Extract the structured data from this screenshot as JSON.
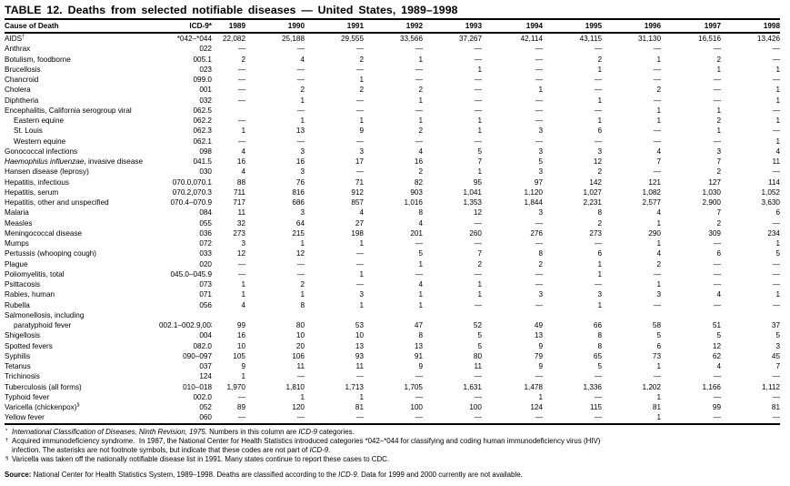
{
  "title": "TABLE 12. Deaths from selected notifiable diseases — United States, 1989–1998",
  "table": {
    "col_headers": [
      "Cause of Death",
      "ICD-9*",
      "1989",
      "1990",
      "1991",
      "1992",
      "1993",
      "1994",
      "1995",
      "1996",
      "1997",
      "1998"
    ],
    "rows": [
      {
        "label": "AIDS",
        "sup": "†",
        "code": "*042–*044",
        "values": [
          "22,082",
          "25,188",
          "29,555",
          "33,566",
          "37,267",
          "42,114",
          "43,115",
          "31,130",
          "16,516",
          "13,426"
        ]
      },
      {
        "label": "Anthrax",
        "code": "022",
        "values": [
          "—",
          "—",
          "—",
          "—",
          "—",
          "—",
          "—",
          "—",
          "—",
          "—"
        ]
      },
      {
        "label": "Botulism, foodborne",
        "code": "005.1",
        "values": [
          "2",
          "4",
          "2",
          "1",
          "—",
          "—",
          "2",
          "1",
          "2",
          "—"
        ]
      },
      {
        "label": "Brucellosis",
        "code": "023",
        "values": [
          "—",
          "—",
          "—",
          "—",
          "1",
          "—",
          "1",
          "—",
          "1",
          "1"
        ]
      },
      {
        "label": "Chancroid",
        "code": "099.0",
        "values": [
          "—",
          "—",
          "1",
          "—",
          "—",
          "—",
          "—",
          "—",
          "—",
          "—"
        ]
      },
      {
        "label": "Cholera",
        "code": "001",
        "values": [
          "—",
          "2",
          "2",
          "2",
          "—",
          "1",
          "—",
          "2",
          "—",
          "1"
        ]
      },
      {
        "label": "Diphtheria",
        "code": "032",
        "values": [
          "—",
          "1",
          "—",
          "1",
          "—",
          "—",
          "1",
          "—",
          "—",
          "1"
        ]
      },
      {
        "label": "Encephalitis, California serogroup viral",
        "code": "062.5",
        "values": [
          "",
          "—",
          "—",
          "—",
          "—",
          "—",
          "—",
          "1",
          "1",
          "—"
        ]
      },
      {
        "label": "Eastern equine",
        "indent": 1,
        "code": "062.2",
        "values": [
          "—",
          "1",
          "1",
          "1",
          "1",
          "—",
          "1",
          "1",
          "2",
          "1"
        ]
      },
      {
        "label": "St. Louis",
        "indent": 1,
        "code": "062.3",
        "values": [
          "1",
          "13",
          "9",
          "2",
          "1",
          "3",
          "6",
          "—",
          "1",
          "—"
        ]
      },
      {
        "label": "Western equine",
        "indent": 1,
        "code": "062.1",
        "values": [
          "—",
          "—",
          "—",
          "—",
          "—",
          "—",
          "—",
          "—",
          "—",
          "1"
        ]
      },
      {
        "label": "Gonococcal infections",
        "code": "098",
        "values": [
          "4",
          "3",
          "3",
          "4",
          "5",
          "3",
          "3",
          "4",
          "3",
          "4"
        ]
      },
      {
        "label_italic": "Haemophilus influenzae",
        "label": ", invasive disease",
        "code": "041.5",
        "values": [
          "16",
          "16",
          "17",
          "16",
          "7",
          "5",
          "12",
          "7",
          "7",
          "11"
        ]
      },
      {
        "label": "Hansen disease (leprosy)",
        "code": "030",
        "values": [
          "4",
          "3",
          "—",
          "2",
          "1",
          "3",
          "2",
          "—",
          "2",
          "—"
        ]
      },
      {
        "label": "Hepatitis, infectious",
        "code": "070.0,070.1",
        "values": [
          "88",
          "76",
          "71",
          "82",
          "95",
          "97",
          "142",
          "121",
          "127",
          "114"
        ]
      },
      {
        "label": "Hepatitis, serum",
        "code": "070.2,070.3",
        "values": [
          "711",
          "816",
          "912",
          "903",
          "1,041",
          "1,120",
          "1,027",
          "1,082",
          "1,030",
          "1,052"
        ]
      },
      {
        "label": "Hepatitis, other and unspecified",
        "code": "070.4–070.9",
        "values": [
          "717",
          "686",
          "857",
          "1,016",
          "1,353",
          "1,844",
          "2,231",
          "2,577",
          "2,900",
          "3,630"
        ]
      },
      {
        "label": "Malaria",
        "code": "084",
        "values": [
          "11",
          "3",
          "4",
          "8",
          "12",
          "3",
          "8",
          "4",
          "7",
          "6"
        ]
      },
      {
        "label": "Measles",
        "code": "055",
        "values": [
          "32",
          "64",
          "27",
          "4",
          "—",
          "—",
          "2",
          "1",
          "2",
          "—"
        ]
      },
      {
        "label": "Meningococcal disease",
        "code": "036",
        "values": [
          "273",
          "215",
          "198",
          "201",
          "260",
          "276",
          "273",
          "290",
          "309",
          "234"
        ]
      },
      {
        "label": "Mumps",
        "code": "072",
        "values": [
          "3",
          "1",
          "1",
          "—",
          "—",
          "—",
          "—",
          "1",
          "—",
          "1"
        ]
      },
      {
        "label": "Pertussis (whooping cough)",
        "code": "033",
        "values": [
          "12",
          "12",
          "—",
          "5",
          "7",
          "8",
          "6",
          "4",
          "6",
          "5"
        ]
      },
      {
        "label": "Plague",
        "code": "020",
        "values": [
          "—",
          "—",
          "—",
          "1",
          "2",
          "2",
          "1",
          "2",
          "—",
          "—"
        ]
      },
      {
        "label": "Poliomyelitis, total",
        "code": "045.0–045.9",
        "values": [
          "—",
          "—",
          "1",
          "—",
          "—",
          "—",
          "1",
          "—",
          "—",
          "—"
        ]
      },
      {
        "label": "Psittacosis",
        "code": "073",
        "values": [
          "1",
          "2",
          "—",
          "4",
          "1",
          "—",
          "—",
          "1",
          "—",
          "—"
        ]
      },
      {
        "label": "Rabies, human",
        "code": "071",
        "values": [
          "1",
          "1",
          "3",
          "1",
          "1",
          "3",
          "3",
          "3",
          "4",
          "1"
        ]
      },
      {
        "label": "Rubella",
        "code": "056",
        "values": [
          "4",
          "8",
          "1",
          "1",
          "—",
          "—",
          "1",
          "—",
          "—",
          "—"
        ]
      },
      {
        "label": "Salmonellosis, including",
        "code": "",
        "values": [
          "",
          "",
          "",
          "",
          "",
          "",
          "",
          "",
          "",
          ""
        ]
      },
      {
        "label": "paratyphoid fever",
        "indent": 1,
        "code": "002.1–002.9,003",
        "values": [
          "99",
          "80",
          "53",
          "47",
          "52",
          "49",
          "66",
          "58",
          "51",
          "37"
        ]
      },
      {
        "label": "Shigellosis",
        "code": "004",
        "values": [
          "16",
          "10",
          "10",
          "8",
          "5",
          "13",
          "8",
          "5",
          "5",
          "5"
        ]
      },
      {
        "label": "Spotted fevers",
        "code": "082.0",
        "values": [
          "10",
          "20",
          "13",
          "13",
          "5",
          "9",
          "8",
          "6",
          "12",
          "3"
        ]
      },
      {
        "label": "Syphilis",
        "code": "090–097",
        "values": [
          "105",
          "106",
          "93",
          "91",
          "80",
          "79",
          "65",
          "73",
          "62",
          "45"
        ]
      },
      {
        "label": "Tetanus",
        "code": "037",
        "values": [
          "9",
          "11",
          "11",
          "9",
          "11",
          "9",
          "5",
          "1",
          "4",
          "7"
        ]
      },
      {
        "label": "Trichinosis",
        "code": "124",
        "values": [
          "1",
          "—",
          "—",
          "—",
          "—",
          "—",
          "—",
          "—",
          "—",
          "—"
        ]
      },
      {
        "label": "Tuberculosis (all forms)",
        "code": "010–018",
        "values": [
          "1,970",
          "1,810",
          "1,713",
          "1,705",
          "1,631",
          "1,478",
          "1,336",
          "1,202",
          "1,166",
          "1,112"
        ]
      },
      {
        "label": "Typhoid fever",
        "code": "002.0",
        "values": [
          "—",
          "1",
          "1",
          "—",
          "—",
          "1",
          "—",
          "1",
          "—",
          "—"
        ]
      },
      {
        "label": "Varicella (chickenpox)",
        "sup": "§",
        "code": "052",
        "values": [
          "89",
          "120",
          "81",
          "100",
          "100",
          "124",
          "115",
          "81",
          "99",
          "81"
        ]
      },
      {
        "label": "Yellow fever",
        "code": "060",
        "values": [
          "—",
          "—",
          "—",
          "—",
          "—",
          "—",
          "—",
          "1",
          "—",
          "—"
        ]
      }
    ]
  },
  "footnotes": [
    {
      "marker": "*",
      "segments": [
        {
          "t": "International Classification of Diseases, Ninth Revision, 1975.",
          "i": true
        },
        {
          "t": " Numbers in this column are "
        },
        {
          "t": "ICD-9",
          "i": true
        },
        {
          "t": " categories."
        }
      ]
    },
    {
      "marker": "†",
      "segments": [
        {
          "t": "Acquired immunodeficiency syndrome.  In 1987, the National Center for Health Statistics introduced categories *042–*044 for classifying and coding human immunodeficiency virus (HIV)"
        },
        {
          "br": true
        },
        {
          "t": "infection. The asterisks are not footnote symbols, but indicate that these codes are not part of "
        },
        {
          "t": "ICD-9",
          "i": true
        },
        {
          "t": "."
        }
      ]
    },
    {
      "marker": "§",
      "segments": [
        {
          "t": "Varicella was taken off the nationally notifiable disease list in 1991. Many states continue to report these cases to CDC."
        }
      ]
    }
  ],
  "source": {
    "segments": [
      {
        "t": "Source:",
        "b": true
      },
      {
        "t": " National Center for Health Statistics System, 1989–1998. Deaths are classified according to the "
      },
      {
        "t": "ICD-9",
        "i": true
      },
      {
        "t": ". Data for 1999 and 2000 currently are not available."
      }
    ]
  }
}
